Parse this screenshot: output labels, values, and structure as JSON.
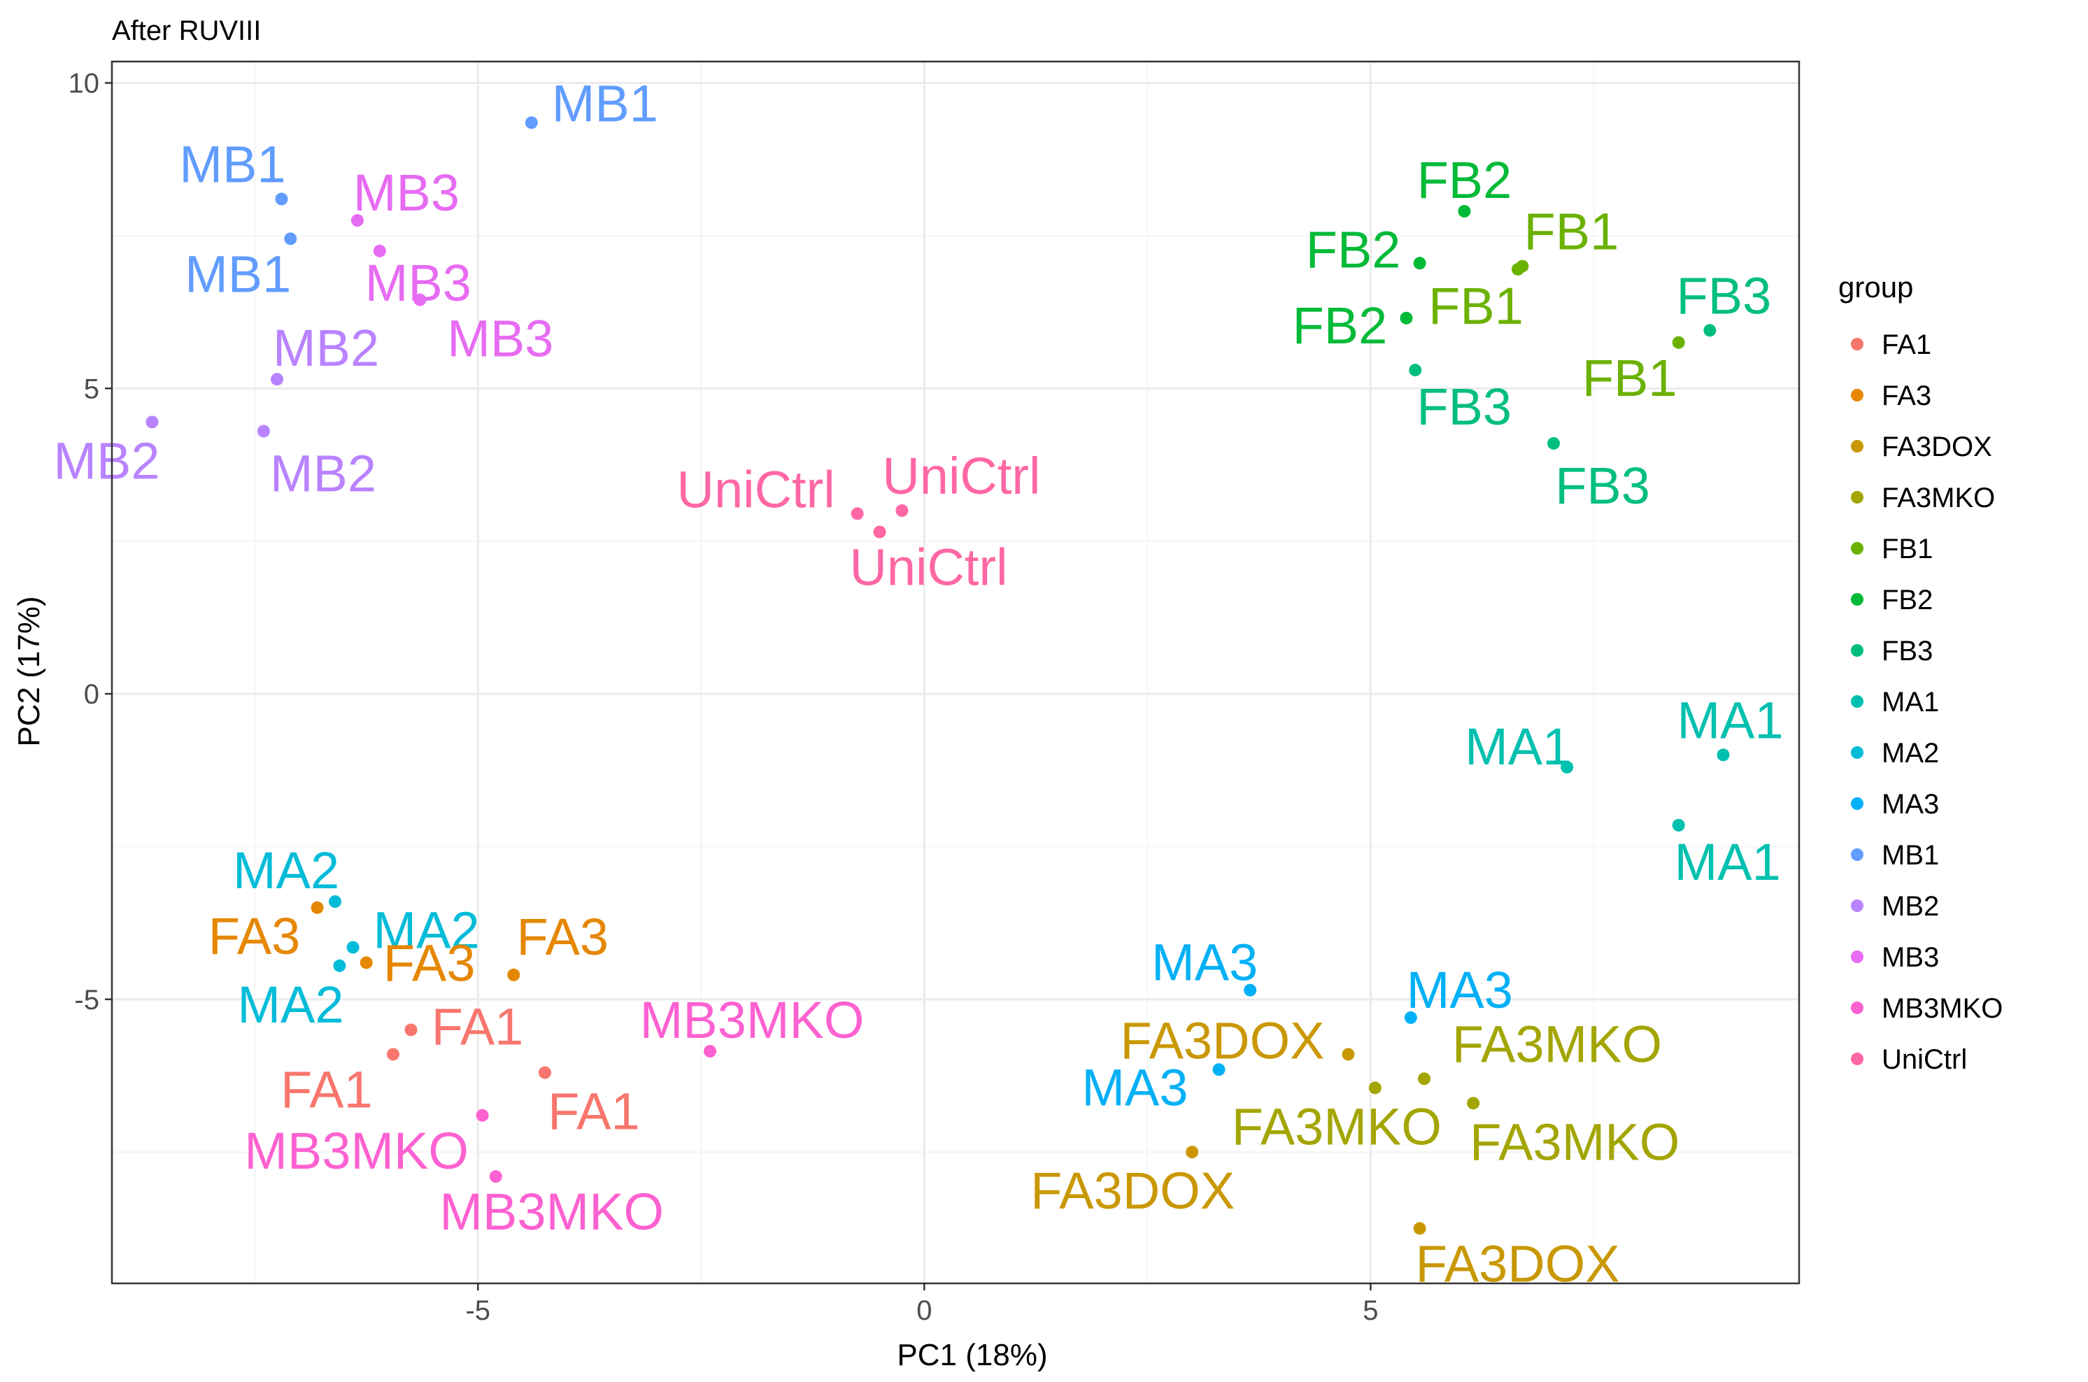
{
  "chart_data": {
    "type": "scatter",
    "title": "After RUVIII",
    "xlabel": "PC1 (18%)",
    "ylabel": "PC2 (17%)",
    "xlim": [
      -9.1,
      9.8
    ],
    "ylim": [
      -9.65,
      10.35
    ],
    "x_ticks": [
      -5,
      0,
      5
    ],
    "x_tick_labels": [
      "-5",
      "0",
      "5"
    ],
    "y_ticks": [
      -5,
      0,
      5,
      10
    ],
    "y_tick_labels": [
      "-5",
      "0",
      "5",
      "10"
    ],
    "grid": true,
    "legend": {
      "title": "group",
      "position": "right",
      "entries": [
        "FA1",
        "FA3",
        "FA3DOX",
        "FA3MKO",
        "FB1",
        "FB2",
        "FB3",
        "MA1",
        "MA2",
        "MA3",
        "MB1",
        "MB2",
        "MB3",
        "MB3MKO",
        "UniCtrl"
      ]
    },
    "colors": {
      "FA1": "#F8766D",
      "FA3": "#E58700",
      "FA3DOX": "#C99800",
      "FA3MKO": "#A3A500",
      "FB1": "#6BB100",
      "FB2": "#00BA38",
      "FB3": "#00BF7D",
      "MA1": "#00C0AF",
      "MA2": "#00BCD8",
      "MA3": "#00B0F6",
      "MB1": "#619CFF",
      "MB2": "#B983FF",
      "MB3": "#E76BF3",
      "MB3MKO": "#FD61D1",
      "UniCtrl": "#FF67A4"
    },
    "points": [
      {
        "group": "MB1",
        "label": "MB1",
        "x": -4.4,
        "y": 9.35
      },
      {
        "group": "MB1",
        "label": "MB1",
        "x": -7.2,
        "y": 8.1
      },
      {
        "group": "MB1",
        "label": "MB1",
        "x": -7.1,
        "y": 7.45
      },
      {
        "group": "MB3",
        "label": "MB3",
        "x": -6.35,
        "y": 7.75
      },
      {
        "group": "MB3",
        "label": "MB3",
        "x": -6.1,
        "y": 7.25
      },
      {
        "group": "MB3",
        "label": "MB3",
        "x": -5.65,
        "y": 6.45
      },
      {
        "group": "MB2",
        "label": "MB2",
        "x": -7.25,
        "y": 5.15
      },
      {
        "group": "MB2",
        "label": "MB2",
        "x": -8.65,
        "y": 4.45
      },
      {
        "group": "MB2",
        "label": "MB2",
        "x": -7.4,
        "y": 4.3
      },
      {
        "group": "UniCtrl",
        "label": "UniCtrl",
        "x": -0.75,
        "y": 2.95
      },
      {
        "group": "UniCtrl",
        "label": "UniCtrl",
        "x": -0.25,
        "y": 3.0
      },
      {
        "group": "UniCtrl",
        "label": "UniCtrl",
        "x": -0.5,
        "y": 2.65
      },
      {
        "group": "FB2",
        "label": "FB2",
        "x": 6.05,
        "y": 7.9
      },
      {
        "group": "FB2",
        "label": "FB2",
        "x": 5.55,
        "y": 7.05
      },
      {
        "group": "FB2",
        "label": "FB2",
        "x": 5.4,
        "y": 6.15
      },
      {
        "group": "FB1",
        "label": "FB1",
        "x": 6.7,
        "y": 7.0
      },
      {
        "group": "FB1",
        "label": "FB1",
        "x": 6.65,
        "y": 6.95
      },
      {
        "group": "FB1",
        "label": "FB1",
        "x": 8.45,
        "y": 5.75
      },
      {
        "group": "FB3",
        "label": "FB3",
        "x": 8.8,
        "y": 5.95
      },
      {
        "group": "FB3",
        "label": "FB3",
        "x": 5.5,
        "y": 5.3
      },
      {
        "group": "FB3",
        "label": "FB3",
        "x": 7.05,
        "y": 4.1
      },
      {
        "group": "MA1",
        "label": "MA1",
        "x": 7.2,
        "y": -1.2
      },
      {
        "group": "MA1",
        "label": "MA1",
        "x": 8.95,
        "y": -1.0
      },
      {
        "group": "MA1",
        "label": "MA1",
        "x": 8.45,
        "y": -2.15
      },
      {
        "group": "MA2",
        "label": "MA2",
        "x": -6.6,
        "y": -3.4
      },
      {
        "group": "MA2",
        "label": "MA2",
        "x": -6.4,
        "y": -4.15
      },
      {
        "group": "MA2",
        "label": "MA2",
        "x": -6.55,
        "y": -4.45
      },
      {
        "group": "FA3",
        "label": "FA3",
        "x": -6.8,
        "y": -3.5
      },
      {
        "group": "FA3",
        "label": "FA3",
        "x": -6.25,
        "y": -4.4
      },
      {
        "group": "FA3",
        "label": "FA3",
        "x": -4.6,
        "y": -4.6
      },
      {
        "group": "FA1",
        "label": "FA1",
        "x": -5.75,
        "y": -5.5
      },
      {
        "group": "FA1",
        "label": "FA1",
        "x": -5.95,
        "y": -5.9
      },
      {
        "group": "FA1",
        "label": "FA1",
        "x": -4.25,
        "y": -6.2
      },
      {
        "group": "MB3MKO",
        "label": "MB3MKO",
        "x": -2.4,
        "y": -5.85
      },
      {
        "group": "MB3MKO",
        "label": "MB3MKO",
        "x": -4.95,
        "y": -6.9
      },
      {
        "group": "MB3MKO",
        "label": "MB3MKO",
        "x": -4.8,
        "y": -7.9
      },
      {
        "group": "MA3",
        "label": "MA3",
        "x": 3.65,
        "y": -4.85
      },
      {
        "group": "MA3",
        "label": "MA3",
        "x": 5.45,
        "y": -5.3
      },
      {
        "group": "MA3",
        "label": "MA3",
        "x": 3.3,
        "y": -6.15
      },
      {
        "group": "FA3DOX",
        "label": "FA3DOX",
        "x": 4.75,
        "y": -5.9
      },
      {
        "group": "FA3DOX",
        "label": "FA3DOX",
        "x": 3.0,
        "y": -7.5
      },
      {
        "group": "FA3DOX",
        "label": "FA3DOX",
        "x": 5.55,
        "y": -8.75
      },
      {
        "group": "FA3MKO",
        "label": "FA3MKO",
        "x": 5.05,
        "y": -6.45
      },
      {
        "group": "FA3MKO",
        "label": "FA3MKO",
        "x": 5.6,
        "y": -6.3
      },
      {
        "group": "FA3MKO",
        "label": "FA3MKO",
        "x": 6.15,
        "y": -6.7
      }
    ]
  }
}
